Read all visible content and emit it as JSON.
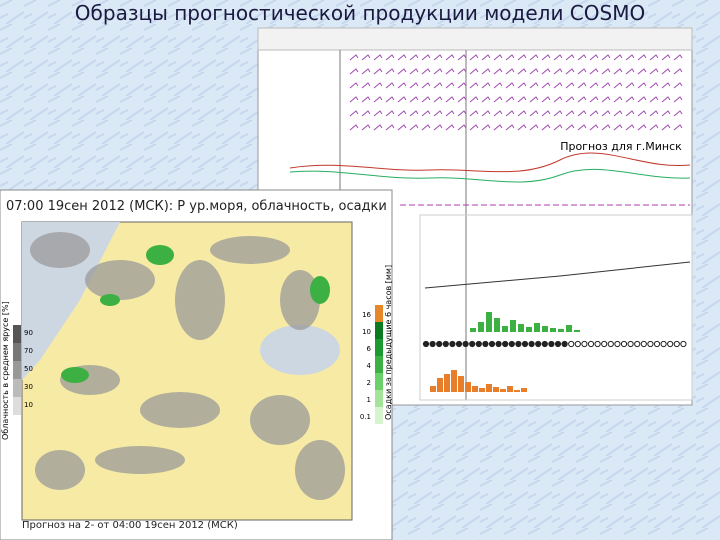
{
  "title": "Образцы прогностической продукции модели COSMO",
  "meteogram": {
    "caption": "Прогноз для г.Минск"
  },
  "map": {
    "header": "07:00 19сен 2012 (МСК): Р ур.моря, облачность, осадки",
    "footer": "Прогноз на 2- от 04:00 19сен 2012 (МСК)",
    "precip_legend": {
      "label": "Осадки за предыдущие 6 часов [мм]",
      "levels": [
        "16",
        "10",
        "6",
        "4",
        "2",
        "1",
        "0.1"
      ]
    },
    "cloud_legend": {
      "label": "Облачность в среднем ярусе [%]",
      "levels": [
        "90",
        "70",
        "50",
        "30",
        "10"
      ]
    }
  }
}
